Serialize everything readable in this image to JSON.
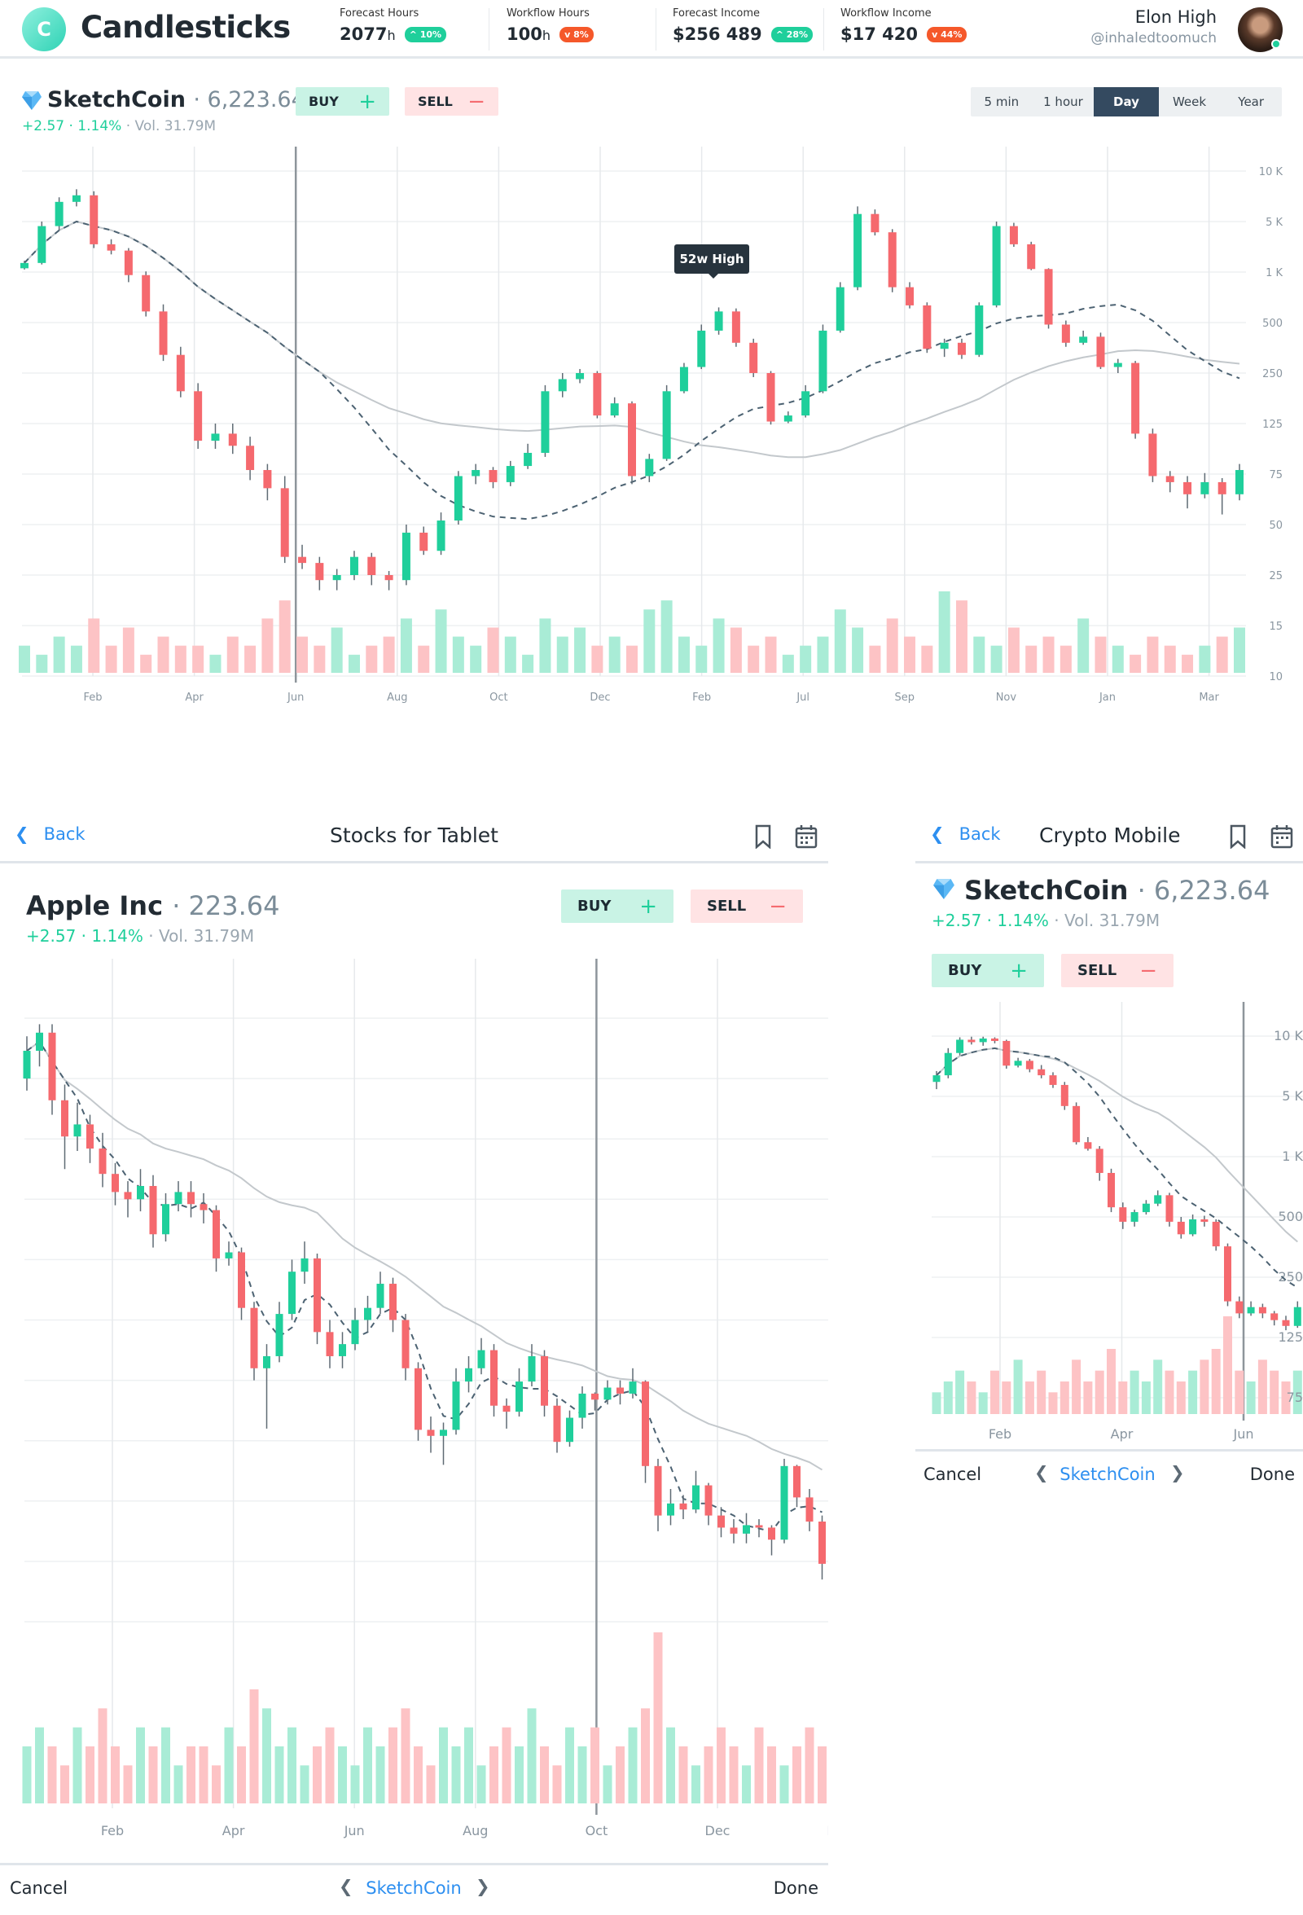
{
  "header": {
    "logo_letter": "C",
    "app_title": "Candlesticks",
    "stats": [
      {
        "label": "Forecast Hours",
        "value": "2077",
        "unit": "h",
        "badge": "^ 10%",
        "trend": "up"
      },
      {
        "label": "Workflow Hours",
        "value": "100",
        "unit": "h",
        "badge": "v 8%",
        "trend": "down"
      },
      {
        "label": "Forecast Income",
        "value": "$256 489",
        "unit": "",
        "badge": "^ 28%",
        "trend": "up"
      },
      {
        "label": "Workflow Income",
        "value": "$17 420",
        "unit": "",
        "badge": "v 44%",
        "trend": "down"
      }
    ],
    "user": {
      "name": "Elon High",
      "handle": "@inhaledtoomuch",
      "status": "online"
    }
  },
  "colors": {
    "up": "#1fcf9b",
    "down": "#f5696e",
    "up_volume": "#a9ecd6",
    "down_volume": "#fdc3c5",
    "accent": "#2d8ff0",
    "active_tab": "#344a60",
    "badge_down": "#f5582a"
  },
  "desktop": {
    "symbol": "SketchCoin",
    "price": "· 6,223.64",
    "change": "+2.57 · 1.14%",
    "volume": "· Vol. 31.79M",
    "buy_label": "BUY",
    "sell_label": "SELL",
    "timeframes": [
      "5 min",
      "1 hour",
      "Day",
      "Week",
      "Year"
    ],
    "active_timeframe": "Day",
    "annotation": "52w High"
  },
  "tablet": {
    "back_label": "Back",
    "title": "Stocks for Tablet",
    "symbol": "Apple Inc",
    "price": "· 223.64",
    "change": "+2.57 · 1.14%",
    "volume": "· Vol. 31.79M",
    "buy_label": "BUY",
    "sell_label": "SELL",
    "footer": {
      "cancel": "Cancel",
      "current": "SketchCoin",
      "done": "Done"
    }
  },
  "mobile": {
    "back_label": "Back",
    "title": "Crypto Mobile",
    "symbol": "SketchCoin",
    "price": "· 6,223.64",
    "change": "+2.57 · 1.14%",
    "volume": "· Vol. 31.79M",
    "buy_label": "BUY",
    "sell_label": "SELL",
    "footer": {
      "cancel": "Cancel",
      "current": "SketchCoin",
      "done": "Done"
    }
  },
  "chart_data": [
    {
      "id": "desktop",
      "type": "candlestick",
      "y_ticks": [
        10000,
        5000,
        1000,
        500,
        250,
        125,
        75,
        50,
        25,
        15,
        10
      ],
      "y_tick_labels": [
        "10 K",
        "5 K",
        "1 K",
        "500",
        "250",
        "125",
        "75",
        "50",
        "25",
        "15",
        "10"
      ],
      "x_tick_labels": [
        "Feb",
        "Apr",
        "Jun",
        "Aug",
        "Oct",
        "Dec",
        "Feb",
        "Jul",
        "Sep",
        "Nov",
        "Jan",
        "Mar"
      ],
      "cursor_at": "Jun",
      "grid": true,
      "overlays": [
        "moving average (dashed)",
        "moving average (solid)"
      ],
      "candles_ohlc": [
        [
          1300,
          1900,
          1200,
          1720
        ],
        [
          1720,
          5000,
          1600,
          4640
        ],
        [
          4640,
          7400,
          4300,
          6950
        ],
        [
          6950,
          8200,
          6500,
          7600
        ],
        [
          7600,
          8000,
          2900,
          3200
        ],
        [
          3200,
          3600,
          2400,
          2700
        ],
        [
          2700,
          2900,
          900,
          970
        ],
        [
          970,
          1050,
          560,
          610
        ],
        [
          610,
          680,
          310,
          340
        ],
        [
          340,
          380,
          190,
          205
        ],
        [
          205,
          225,
          100,
          108
        ],
        [
          108,
          125,
          100,
          115
        ],
        [
          115,
          125,
          95,
          103
        ],
        [
          103,
          112,
          72,
          79
        ],
        [
          79,
          85,
          62,
          68
        ],
        [
          68,
          74,
          31,
          34
        ],
        [
          34,
          40,
          28,
          31
        ],
        [
          31,
          34,
          22,
          24
        ],
        [
          24,
          28,
          22,
          25
        ],
        [
          25,
          37,
          24,
          34
        ],
        [
          34,
          36,
          23,
          25
        ],
        [
          25,
          27,
          22,
          24
        ],
        [
          24,
          50,
          23,
          46
        ],
        [
          46,
          49,
          35,
          37
        ],
        [
          37,
          56,
          35,
          52
        ],
        [
          52,
          78,
          50,
          74
        ],
        [
          74,
          85,
          70,
          79
        ],
        [
          79,
          82,
          68,
          71
        ],
        [
          71,
          88,
          69,
          83
        ],
        [
          83,
          105,
          80,
          96
        ],
        [
          96,
          220,
          92,
          205
        ],
        [
          205,
          250,
          190,
          235
        ],
        [
          235,
          270,
          225,
          250
        ],
        [
          250,
          260,
          138,
          145
        ],
        [
          145,
          190,
          140,
          175
        ],
        [
          175,
          180,
          70,
          74
        ],
        [
          74,
          95,
          71,
          90
        ],
        [
          90,
          220,
          88,
          205
        ],
        [
          205,
          300,
          200,
          280
        ],
        [
          280,
          490,
          270,
          460
        ],
        [
          460,
          650,
          440,
          610
        ],
        [
          610,
          640,
          380,
          400
        ],
        [
          400,
          420,
          240,
          250
        ],
        [
          250,
          260,
          124,
          130
        ],
        [
          130,
          155,
          126,
          145
        ],
        [
          145,
          220,
          140,
          205
        ],
        [
          205,
          490,
          200,
          460
        ],
        [
          460,
          900,
          450,
          850
        ],
        [
          850,
          6500,
          820,
          5750
        ],
        [
          5750,
          6200,
          3900,
          4150
        ],
        [
          4150,
          4400,
          800,
          850
        ],
        [
          850,
          900,
          640,
          670
        ],
        [
          670,
          700,
          350,
          370
        ],
        [
          370,
          420,
          330,
          400
        ],
        [
          400,
          420,
          320,
          340
        ],
        [
          340,
          700,
          330,
          670
        ],
        [
          670,
          5000,
          650,
          4640
        ],
        [
          4640,
          4900,
          3000,
          3200
        ],
        [
          3200,
          3400,
          1150,
          1240
        ],
        [
          1240,
          1300,
          470,
          490
        ],
        [
          490,
          520,
          380,
          400
        ],
        [
          400,
          460,
          390,
          430
        ],
        [
          430,
          450,
          270,
          280
        ],
        [
          280,
          320,
          250,
          300
        ],
        [
          300,
          310,
          110,
          115
        ],
        [
          115,
          120,
          71,
          74
        ],
        [
          74,
          78,
          66,
          71
        ],
        [
          71,
          74,
          58,
          65
        ],
        [
          65,
          76,
          63,
          71
        ],
        [
          71,
          73,
          55,
          65
        ],
        [
          65,
          85,
          62,
          79
        ]
      ],
      "volumes": [
        3,
        2,
        4,
        3,
        6,
        3,
        5,
        2,
        4,
        3,
        3,
        2,
        4,
        3,
        6,
        8,
        4,
        3,
        5,
        2,
        3,
        4,
        6,
        3,
        7,
        4,
        3,
        5,
        4,
        2,
        6,
        4,
        5,
        3,
        4,
        3,
        7,
        8,
        4,
        3,
        6,
        5,
        3,
        4,
        2,
        3,
        4,
        7,
        5,
        3,
        6,
        4,
        3,
        9,
        8,
        4,
        3,
        5,
        3,
        4,
        3,
        6,
        4,
        3,
        2,
        4,
        3,
        2,
        3,
        4,
        5
      ]
    },
    {
      "id": "tablet",
      "type": "candlestick",
      "x_tick_labels": [
        "Feb",
        "Apr",
        "Jun",
        "Aug",
        "Oct",
        "Dec",
        "Feb"
      ],
      "cursor_at": "Oct",
      "grid": true,
      "overlays": [
        "moving average (dashed)",
        "moving average (solid)"
      ],
      "candles_ohlc": [
        [
          255.0,
          258.5,
          254.0,
          257.3
        ],
        [
          257.3,
          259.5,
          256.0,
          258.8
        ],
        [
          258.8,
          259.5,
          252.0,
          253.2
        ],
        [
          253.2,
          254.5,
          247.5,
          250.2
        ],
        [
          250.2,
          253.0,
          249.0,
          251.2
        ],
        [
          251.2,
          252.0,
          248.0,
          249.2
        ],
        [
          249.2,
          250.5,
          246.0,
          247.1
        ],
        [
          247.1,
          248.0,
          244.5,
          245.6
        ],
        [
          245.6,
          246.5,
          243.5,
          245.0
        ],
        [
          245.0,
          247.5,
          244.0,
          246.1
        ],
        [
          246.1,
          247.0,
          241.0,
          242.1
        ],
        [
          242.1,
          245.5,
          241.5,
          244.6
        ],
        [
          244.6,
          246.5,
          244.0,
          245.6
        ],
        [
          245.6,
          246.5,
          243.5,
          244.6
        ],
        [
          244.6,
          245.5,
          243.0,
          244.1
        ],
        [
          244.1,
          244.5,
          239.0,
          240.1
        ],
        [
          240.1,
          241.5,
          239.5,
          240.6
        ],
        [
          240.6,
          241.0,
          235.0,
          236.0
        ],
        [
          236.0,
          236.5,
          230.0,
          231.0
        ],
        [
          231.0,
          233.0,
          226.0,
          232.0
        ],
        [
          232.0,
          236.5,
          231.5,
          235.5
        ],
        [
          235.5,
          240.0,
          235.0,
          239.0
        ],
        [
          239.0,
          241.5,
          238.0,
          240.1
        ],
        [
          240.1,
          240.5,
          233.0,
          234.0
        ],
        [
          234.0,
          235.0,
          231.0,
          232.0
        ],
        [
          232.0,
          234.0,
          231.0,
          233.0
        ],
        [
          233.0,
          236.0,
          232.5,
          235.0
        ],
        [
          235.0,
          237.0,
          234.0,
          236.0
        ],
        [
          236.0,
          239.0,
          235.5,
          238.0
        ],
        [
          238.0,
          238.5,
          234.0,
          235.0
        ],
        [
          235.0,
          235.5,
          230.0,
          231.0
        ],
        [
          231.0,
          231.5,
          225.0,
          225.9
        ],
        [
          225.9,
          227.0,
          224.0,
          225.4
        ],
        [
          225.4,
          226.5,
          223.0,
          225.9
        ],
        [
          225.9,
          231.0,
          225.5,
          229.9
        ],
        [
          229.9,
          232.0,
          229.0,
          231.0
        ],
        [
          231.0,
          233.5,
          230.5,
          232.5
        ],
        [
          232.5,
          233.0,
          227.0,
          227.9
        ],
        [
          227.9,
          228.5,
          226.0,
          227.4
        ],
        [
          227.4,
          231.0,
          227.0,
          229.9
        ],
        [
          229.9,
          233.0,
          229.5,
          232.0
        ],
        [
          232.0,
          232.5,
          227.0,
          227.9
        ],
        [
          227.9,
          228.5,
          224.0,
          224.9
        ],
        [
          224.9,
          227.5,
          224.5,
          226.9
        ],
        [
          226.9,
          229.5,
          226.0,
          228.9
        ],
        [
          228.9,
          229.0,
          227.5,
          228.4
        ],
        [
          228.4,
          230.0,
          228.0,
          229.4
        ],
        [
          229.4,
          230.0,
          228.0,
          228.9
        ],
        [
          228.9,
          231.0,
          228.5,
          229.9
        ],
        [
          229.9,
          230.0,
          221.5,
          222.9
        ],
        [
          222.9,
          223.5,
          217.5,
          218.8
        ],
        [
          218.8,
          221.0,
          218.0,
          219.8
        ],
        [
          219.8,
          220.5,
          218.5,
          219.3
        ],
        [
          219.3,
          222.5,
          219.0,
          221.3
        ],
        [
          221.3,
          221.5,
          218.0,
          218.8
        ],
        [
          218.8,
          219.5,
          217.0,
          217.8
        ],
        [
          217.8,
          218.5,
          216.5,
          217.3
        ],
        [
          217.3,
          219.0,
          216.5,
          218.0
        ],
        [
          218.0,
          218.5,
          217.0,
          217.8
        ],
        [
          217.8,
          218.0,
          215.5,
          216.8
        ],
        [
          216.8,
          223.5,
          216.5,
          222.9
        ],
        [
          222.9,
          223.0,
          219.5,
          220.3
        ],
        [
          220.3,
          221.0,
          217.5,
          218.3
        ],
        [
          218.3,
          218.8,
          213.5,
          214.8
        ]
      ],
      "volumes": [
        3,
        4,
        3,
        2,
        4,
        3,
        5,
        3,
        2,
        4,
        3,
        4,
        2,
        3,
        3,
        2,
        4,
        3,
        6,
        5,
        3,
        4,
        2,
        3,
        4,
        3,
        2,
        4,
        3,
        4,
        5,
        3,
        2,
        4,
        3,
        4,
        2,
        3,
        4,
        3,
        5,
        3,
        2,
        4,
        3,
        4,
        2,
        3,
        4,
        5,
        9,
        4,
        3,
        2,
        3,
        4,
        3,
        2,
        4,
        3,
        2,
        3,
        4,
        3
      ]
    },
    {
      "id": "mobile",
      "type": "candlestick",
      "y_ticks": [
        10000,
        5000,
        1000,
        500,
        250,
        125,
        75
      ],
      "y_tick_labels": [
        "10 K",
        "5 K",
        "1 K",
        "500",
        "250",
        "125",
        "75"
      ],
      "x_tick_labels": [
        "Feb",
        "Apr",
        "Jun"
      ],
      "cursor_at": "Jun",
      "grid": true,
      "overlays": [
        "moving average (dashed)",
        "moving average (solid)"
      ],
      "candles_ohlc": [
        [
          6200,
          7100,
          5600,
          6750
        ],
        [
          6750,
          9000,
          6500,
          8600
        ],
        [
          8600,
          9900,
          8400,
          9700
        ],
        [
          9700,
          9950,
          9300,
          9500
        ],
        [
          9500,
          9950,
          9200,
          9800
        ],
        [
          9800,
          9900,
          9400,
          9600
        ],
        [
          9600,
          9700,
          7300,
          7550
        ],
        [
          7550,
          8200,
          7400,
          7950
        ],
        [
          7950,
          8100,
          7000,
          7250
        ],
        [
          7250,
          7600,
          6500,
          6750
        ],
        [
          6750,
          7000,
          5700,
          5950
        ],
        [
          5950,
          6200,
          4100,
          4360
        ],
        [
          4360,
          4600,
          1800,
          1960
        ],
        [
          1960,
          2300,
          1400,
          1520
        ],
        [
          1520,
          1700,
          800,
          865
        ],
        [
          865,
          900,
          540,
          580
        ],
        [
          580,
          620,
          450,
          480
        ],
        [
          480,
          560,
          460,
          540
        ],
        [
          540,
          640,
          520,
          610
        ],
        [
          610,
          720,
          590,
          680
        ],
        [
          680,
          700,
          460,
          480
        ],
        [
          480,
          500,
          410,
          428
        ],
        [
          428,
          520,
          420,
          490
        ],
        [
          490,
          510,
          460,
          480
        ],
        [
          480,
          490,
          360,
          378
        ],
        [
          378,
          390,
          190,
          200
        ],
        [
          200,
          210,
          165,
          175
        ],
        [
          175,
          200,
          170,
          188
        ],
        [
          188,
          195,
          165,
          175
        ],
        [
          175,
          180,
          150,
          161
        ],
        [
          161,
          170,
          140,
          149
        ],
        [
          149,
          200,
          145,
          188
        ]
      ],
      "volumes": [
        2,
        3,
        4,
        3,
        2,
        4,
        3,
        5,
        3,
        4,
        2,
        3,
        5,
        3,
        4,
        6,
        3,
        4,
        3,
        5,
        4,
        3,
        4,
        5,
        6,
        9,
        4,
        3,
        5,
        4,
        3,
        4
      ]
    }
  ]
}
